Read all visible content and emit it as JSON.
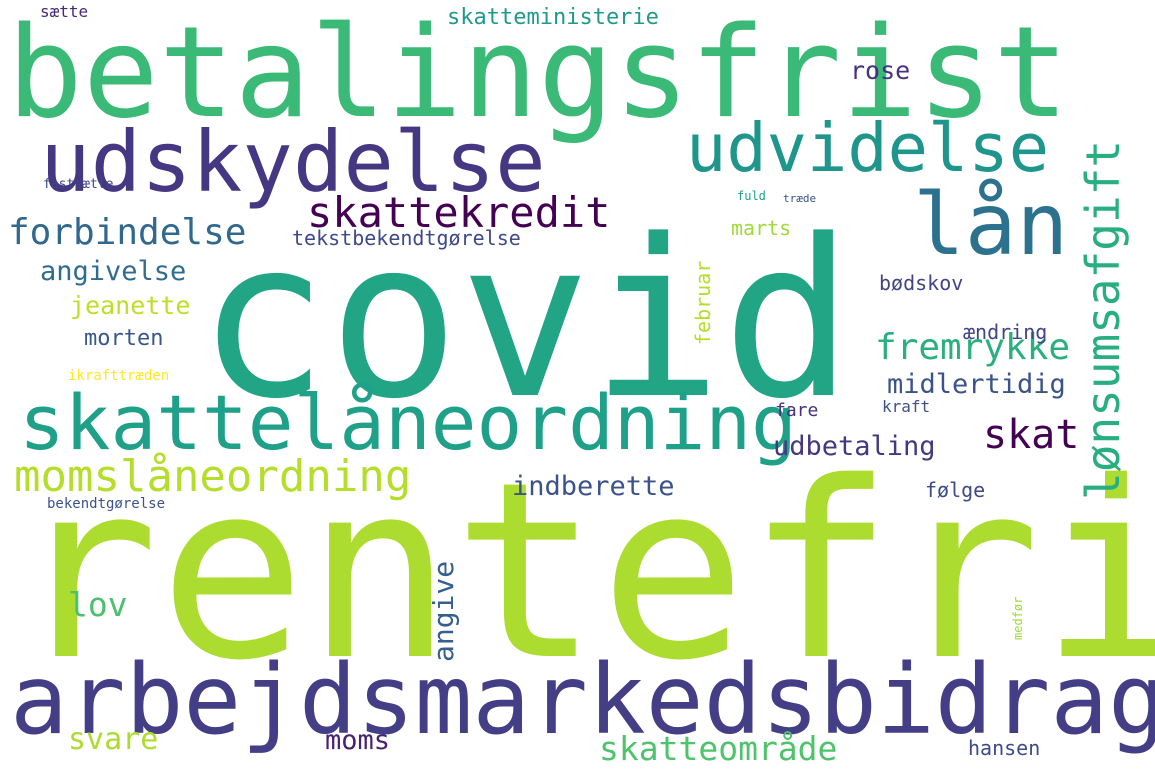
{
  "cloud": {
    "words": [
      {
        "text": "covid",
        "color": "#21a585"
      },
      {
        "text": "rentefri",
        "color": "#addc30"
      },
      {
        "text": "betalingsfrist",
        "color": "#3aba76"
      },
      {
        "text": "arbejdsmarkedsbidrag",
        "color": "#433e85"
      },
      {
        "text": "udskydelse",
        "color": "#453781"
      },
      {
        "text": "skattelåneordning",
        "color": "#1fa088"
      },
      {
        "text": "udvidelse",
        "color": "#1f968b"
      },
      {
        "text": "lån",
        "color": "#2c728e"
      },
      {
        "text": "lønsumsafgift",
        "color": "#28ae80"
      },
      {
        "text": "momslåneordning",
        "color": "#b5de2b"
      },
      {
        "text": "skattekredit",
        "color": "#440154"
      },
      {
        "text": "forbindelse",
        "color": "#31688e"
      },
      {
        "text": "fremrykke",
        "color": "#2ab07f"
      },
      {
        "text": "skat",
        "color": "#440154"
      },
      {
        "text": "skatteområde",
        "color": "#4ec36b"
      },
      {
        "text": "angivelse",
        "color": "#2f6c8e"
      },
      {
        "text": "midlertidig",
        "color": "#3b528b"
      },
      {
        "text": "udbetaling",
        "color": "#453781"
      },
      {
        "text": "indberette",
        "color": "#3b528b"
      },
      {
        "text": "svare",
        "color": "#addc30"
      },
      {
        "text": "lov",
        "color": "#4ac16d"
      },
      {
        "text": "moms",
        "color": "#482173"
      },
      {
        "text": "angive",
        "color": "#355f8d"
      },
      {
        "text": "skatteministerie",
        "color": "#1f9a8a"
      },
      {
        "text": "rose",
        "color": "#46327e"
      },
      {
        "text": "tekstbekendtgørelse",
        "color": "#3e4989"
      },
      {
        "text": "marts",
        "color": "#a0da39"
      },
      {
        "text": "jeanette",
        "color": "#bddf26"
      },
      {
        "text": "morten",
        "color": "#38588c"
      },
      {
        "text": "februar",
        "color": "#b5de2b"
      },
      {
        "text": "bødskov",
        "color": "#414487"
      },
      {
        "text": "ændring",
        "color": "#414487"
      },
      {
        "text": "fare",
        "color": "#46327e"
      },
      {
        "text": "kraft",
        "color": "#3b528b"
      },
      {
        "text": "følge",
        "color": "#3e4989"
      },
      {
        "text": "hansen",
        "color": "#3e4989"
      },
      {
        "text": "ikrafttræden",
        "color": "#fde725"
      },
      {
        "text": "bekendtgørelse",
        "color": "#3b528b"
      },
      {
        "text": "sætte",
        "color": "#482878"
      },
      {
        "text": "fastsætte",
        "color": "#404688"
      },
      {
        "text": "fuld",
        "color": "#1fa188"
      },
      {
        "text": "træde",
        "color": "#3b528b"
      },
      {
        "text": "medfør",
        "color": "#a0da39"
      }
    ]
  }
}
